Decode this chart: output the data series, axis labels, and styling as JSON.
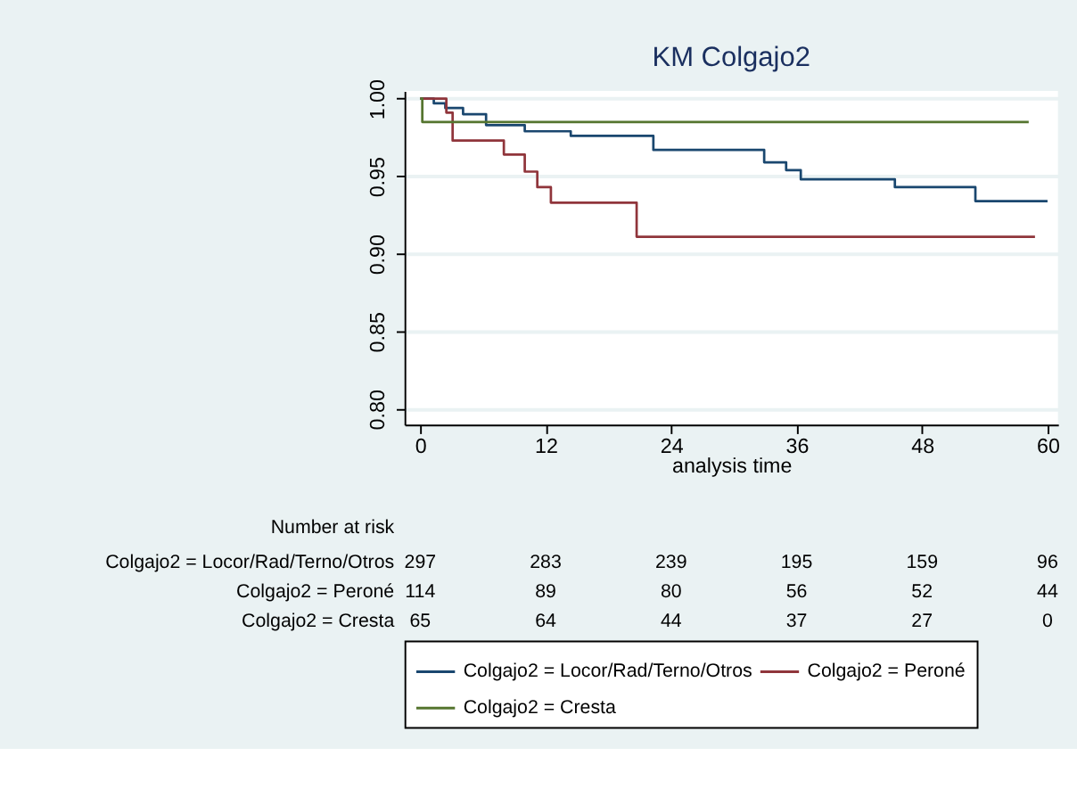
{
  "chart_data": {
    "type": "step",
    "title": "KM Colgajo2",
    "xlabel": "analysis time",
    "xlim": [
      -1.5,
      61
    ],
    "xticks": [
      0,
      12,
      24,
      36,
      48,
      60
    ],
    "ylim": [
      0.79,
      1.005
    ],
    "yticks": [
      {
        "value": 0.8,
        "label": "0.80"
      },
      {
        "value": 0.85,
        "label": "0.85"
      },
      {
        "value": 0.9,
        "label": "0.90"
      },
      {
        "value": 0.95,
        "label": "0.95"
      },
      {
        "value": 1.0,
        "label": "1.00"
      }
    ],
    "grid": "y",
    "legend": "bottom",
    "line_style": "solid",
    "marker": "none",
    "series": [
      {
        "name": "Colgajo2 = Locor/Rad/Terno/Otros",
        "color": "#1a476f",
        "x": [
          0,
          1.3,
          2.4,
          4.1,
          6.3,
          10,
          14.4,
          22.3,
          32.9,
          35,
          36.4,
          45.4,
          53.1,
          60
        ],
        "values": [
          1.0,
          0.997,
          0.994,
          0.99,
          0.983,
          0.979,
          0.976,
          0.967,
          0.959,
          0.954,
          0.948,
          0.943,
          0.934,
          0.934
        ]
      },
      {
        "name": "Colgajo2 = Peroné",
        "color": "#90353b",
        "x": [
          0,
          2.5,
          3.1,
          8,
          10,
          11.2,
          12.5,
          20.7,
          58.8
        ],
        "values": [
          1.0,
          0.991,
          0.973,
          0.964,
          0.953,
          0.943,
          0.933,
          0.911,
          0.911
        ]
      },
      {
        "name": "Colgajo2 = Cresta",
        "color": "#55752f",
        "x": [
          0,
          0.2,
          58.2
        ],
        "values": [
          1.0,
          0.985,
          0.985
        ]
      }
    ],
    "annotations": [
      "Number at risk",
      "Colgajo2 = Locor/Rad/Terno/Otros",
      "297",
      "283",
      "239",
      "195",
      "159",
      "96",
      "Colgajo2 = Peroné",
      "114",
      "89",
      "80",
      "56",
      "52",
      "44",
      "Colgajo2 = Cresta",
      "65",
      "64",
      "44",
      "37",
      "27",
      "0"
    ]
  }
}
